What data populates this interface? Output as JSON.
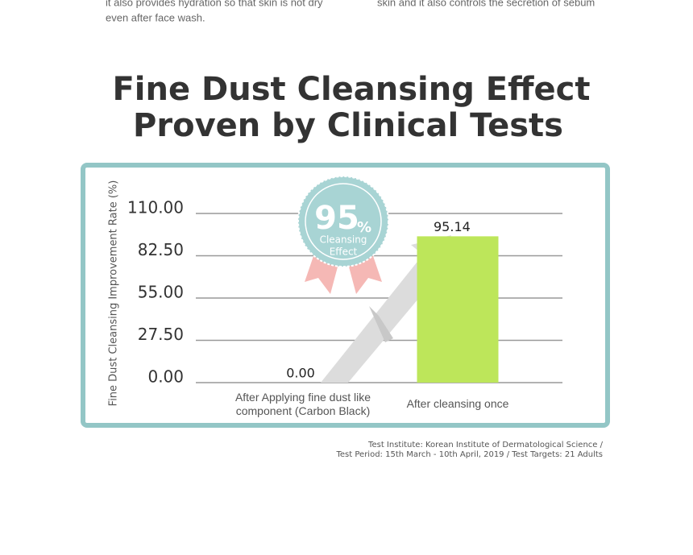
{
  "top_text": {
    "left": [
      "it also provides hydration so that skin is not dry",
      "even after face wash."
    ],
    "right": [
      "skin and it also controls the secretion of sebum"
    ]
  },
  "chart_data": {
    "type": "bar",
    "title": [
      "Fine Dust Cleansing Effect",
      "Proven by Clinical Tests"
    ],
    "y_label": "Fine Dust Cleansing Improvement Rate (%)",
    "categories": [
      "After Applying fine dust like component (Carbon Black)",
      "After cleansing once"
    ],
    "values": [
      0,
      95.14
    ],
    "value_labels": [
      "0.00",
      "95.14"
    ],
    "color": "#bde65a",
    "ylim": [
      0,
      110
    ],
    "yticks": [
      {
        "value": 0,
        "label": "0.00"
      },
      {
        "value": 27.5,
        "label": "27.50"
      },
      {
        "value": 55,
        "label": "55.00"
      },
      {
        "value": 82.5,
        "label": "82.50"
      },
      {
        "value": 110,
        "label": "110.00"
      }
    ],
    "grid": true,
    "badge": {
      "number": "95",
      "unit": "%",
      "text": [
        "Cleansing",
        "Effect"
      ]
    },
    "note": [
      "Test Institute: Korean Institute of Dermatological Science /",
      "Test Period: 15th March - 10th April, 2019 / Test Targets: 21 Adults"
    ]
  }
}
